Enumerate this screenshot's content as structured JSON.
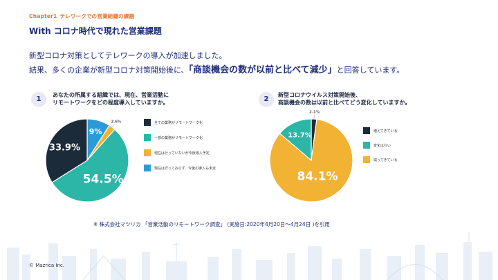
{
  "header": {
    "chapter_num": "Chapter1",
    "chapter_title": "テレワークでの営業組織の課題",
    "title": "With コロナ時代で現れた営業課題"
  },
  "intro": {
    "line1": "新型コロナ対策としてテレワークの導入が加速しました。",
    "line2_pre": "結果、多くの企業が新型コロナ対策開始後に、",
    "line2_highlight": "「商談機会の数が以前と比べて減少」",
    "line2_post": "と回答しています。"
  },
  "questions": [
    {
      "num": "1",
      "line1": "あなたの所属する組織では、現在、営業活動に",
      "line2": "リモートワークをどの程度導入していますか。"
    },
    {
      "num": "2",
      "line1": "新型コロナウイルス対策開始後、",
      "line2": "商談機会の数は以前と比べてどう変化していますか。"
    }
  ],
  "chart_data": [
    {
      "type": "pie",
      "categories": [
        "全ての業務がリモートワーク化",
        "一部の業務がリモートワーク化",
        "現在は行っていないが今後導入予定",
        "現在は行っておらず、今後の導入も未定"
      ],
      "values": [
        33.9,
        54.5,
        2.6,
        9
      ],
      "labels": [
        "33.9%",
        "54.5%",
        "2.6%",
        "9%"
      ],
      "colors": [
        "#1b2b3a",
        "#2bb6a8",
        "#f2b233",
        "#2b9bd8"
      ],
      "legend_position": "right"
    },
    {
      "type": "pie",
      "categories": [
        "増えてきている",
        "変化はない",
        "減ってきている"
      ],
      "values": [
        2.1,
        13.7,
        84.1
      ],
      "labels": [
        "2.1%",
        "13.7%",
        "84.1%"
      ],
      "colors": [
        "#1b2b3a",
        "#2bb6a8",
        "#f2b233"
      ],
      "legend_position": "right"
    }
  ],
  "source": "※ 株式会社マツリカ 「営業活動のリモートワーク調査」 (実施日:2020年4月20日〜4月24日 )を引用",
  "footer": {
    "copyright": "© Mazrica Inc."
  }
}
